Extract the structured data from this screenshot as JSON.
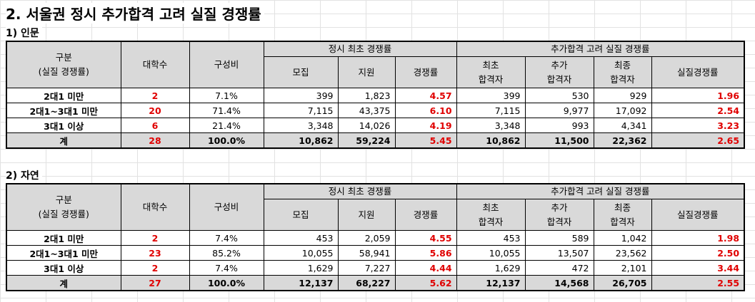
{
  "title": "2. 서울권 정시 추가합격 고려 실질 경쟁률",
  "headers": {
    "group_line1": "구분",
    "group_line2": "(실질 경쟁률)",
    "universities": "대학수",
    "ratio": "구성비",
    "initial_group": "정시 최초 경쟁률",
    "recruit": "모집",
    "apply": "지원",
    "competition": "경쟁률",
    "additional_group": "추가합격 고려 실질 경쟁률",
    "first_pass_l1": "최초",
    "first_pass_l2": "합격자",
    "add_pass_l1": "추가",
    "add_pass_l2": "합격자",
    "final_pass_l1": "최종",
    "final_pass_l2": "합격자",
    "real_competition": "실질경쟁률"
  },
  "sections": [
    {
      "label": "1) 인문",
      "rows": [
        {
          "group": "2대1 미만",
          "univ": "2",
          "ratio": "7.1%",
          "recruit": "399",
          "apply": "1,823",
          "comp": "4.57",
          "first": "399",
          "add": "530",
          "final": "929",
          "real": "1.96"
        },
        {
          "group": "2대1~3대1 미만",
          "univ": "20",
          "ratio": "71.4%",
          "recruit": "7,115",
          "apply": "43,375",
          "comp": "6.10",
          "first": "7,115",
          "add": "9,977",
          "final": "17,092",
          "real": "2.54"
        },
        {
          "group": "3대1 이상",
          "univ": "6",
          "ratio": "21.4%",
          "recruit": "3,348",
          "apply": "14,026",
          "comp": "4.19",
          "first": "3,348",
          "add": "993",
          "final": "4,341",
          "real": "3.23"
        },
        {
          "group": "계",
          "univ": "28",
          "ratio": "100.0%",
          "recruit": "10,862",
          "apply": "59,224",
          "comp": "5.45",
          "first": "10,862",
          "add": "11,500",
          "final": "22,362",
          "real": "2.65"
        }
      ]
    },
    {
      "label": "2) 자연",
      "rows": [
        {
          "group": "2대1 미만",
          "univ": "2",
          "ratio": "7.4%",
          "recruit": "453",
          "apply": "2,059",
          "comp": "4.55",
          "first": "453",
          "add": "589",
          "final": "1,042",
          "real": "1.98"
        },
        {
          "group": "2대1~3대1 미만",
          "univ": "23",
          "ratio": "85.2%",
          "recruit": "10,055",
          "apply": "58,941",
          "comp": "5.86",
          "first": "10,055",
          "add": "13,507",
          "final": "23,562",
          "real": "2.50"
        },
        {
          "group": "3대1 이상",
          "univ": "2",
          "ratio": "7.4%",
          "recruit": "1,629",
          "apply": "7,227",
          "comp": "4.44",
          "first": "1,629",
          "add": "472",
          "final": "2,101",
          "real": "3.44"
        },
        {
          "group": "계",
          "univ": "27",
          "ratio": "100.0%",
          "recruit": "12,137",
          "apply": "68,227",
          "comp": "5.62",
          "first": "12,137",
          "add": "14,568",
          "final": "26,705",
          "real": "2.55"
        }
      ]
    }
  ]
}
